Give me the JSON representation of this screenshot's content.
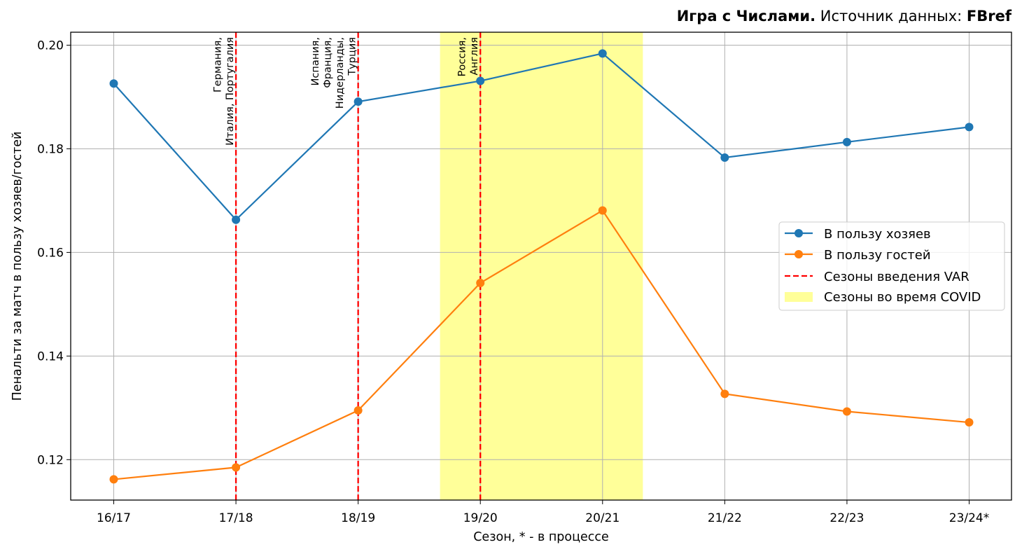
{
  "header": {
    "brand": "Игра с Числами.",
    "source_prefix": "Источник данных:",
    "source_name": "FBref"
  },
  "chart_data": {
    "type": "line",
    "categories": [
      "16/17",
      "17/18",
      "18/19",
      "19/20",
      "20/21",
      "21/22",
      "22/23",
      "23/24*"
    ],
    "series": [
      {
        "name": "В пользу хозяев",
        "color": "#1f77b4",
        "values": [
          0.1926,
          0.1663,
          0.1891,
          0.1931,
          0.1984,
          0.1783,
          0.1813,
          0.1842
        ]
      },
      {
        "name": "В пользу гостей",
        "color": "#ff7f0e",
        "values": [
          0.1162,
          0.1185,
          0.1295,
          0.1541,
          0.1681,
          0.1327,
          0.1293,
          0.1272
        ]
      }
    ],
    "var_seasons": {
      "label": "Сезоны введения VAR",
      "color": "#ff0000",
      "lines": [
        {
          "category": "17/18",
          "annotation": [
            "Германия,",
            "Италия, Португалия"
          ]
        },
        {
          "category": "18/19",
          "annotation": [
            "Испания,",
            "Франция,",
            "Нидерланды,",
            "Турция"
          ]
        },
        {
          "category": "19/20",
          "annotation": [
            "Россия,",
            "Англия"
          ]
        }
      ]
    },
    "covid_span": {
      "label": "Сезоны во время COVID",
      "from_index": 2.67,
      "to_index": 4.33,
      "color": "#ffff99"
    },
    "xlabel": "Сезон, * - в процессе",
    "ylabel": "Пенальти за матч в пользу хозяев/гостей",
    "ylim": [
      0.1122,
      0.2025
    ],
    "yticks": [
      "0.12",
      "0.14",
      "0.16",
      "0.18",
      "0.20"
    ],
    "grid": true,
    "legend_position": "center-right"
  }
}
